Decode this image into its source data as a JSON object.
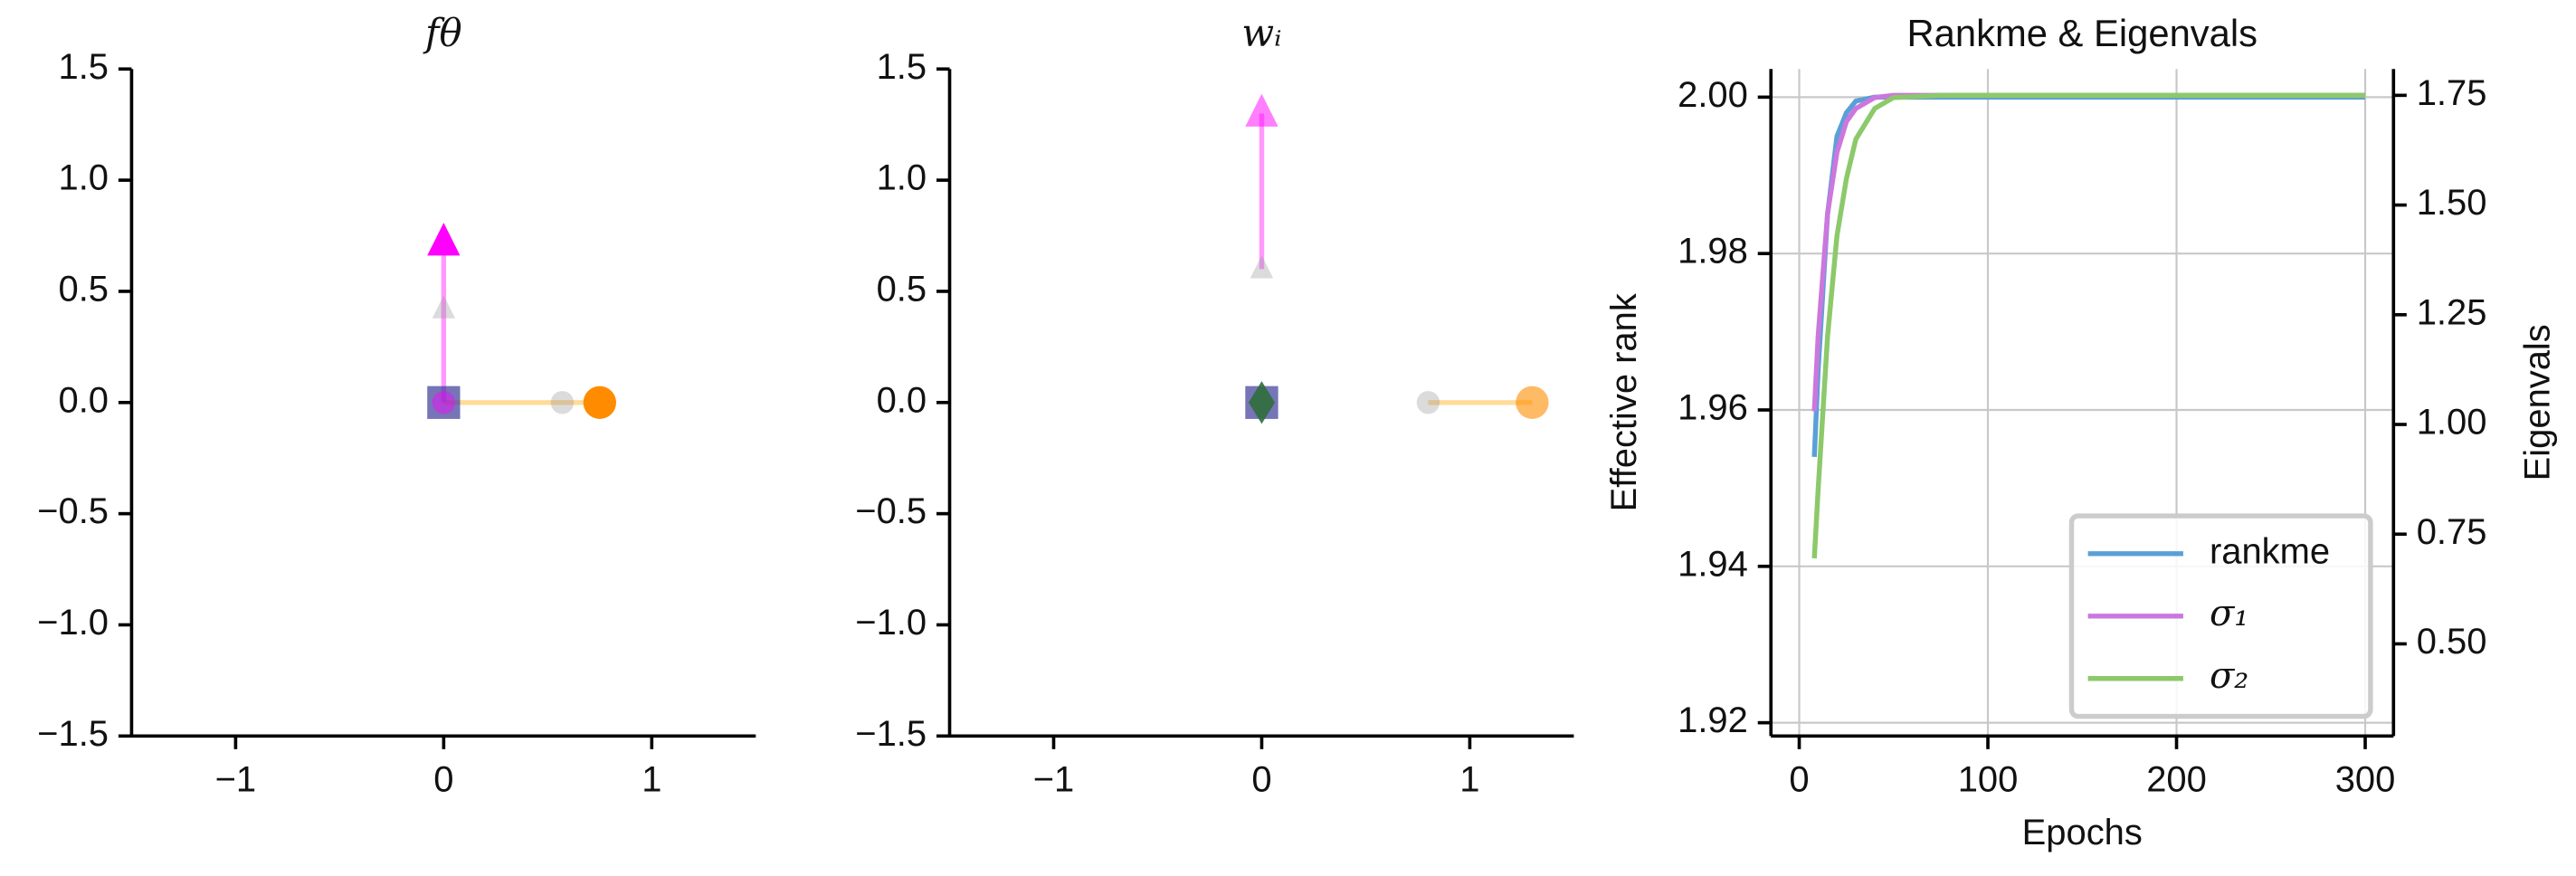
{
  "chart_data": [
    {
      "type": "scatter",
      "title": "fθ",
      "xlim": [
        -1.5,
        1.5
      ],
      "ylim": [
        -1.5,
        1.5
      ],
      "xticks": [
        {
          "value": -1,
          "label": "−1"
        },
        0,
        1
      ],
      "yticks": [
        {
          "value": -1.5,
          "label": "−1.5"
        },
        {
          "value": -1,
          "label": "−1.0"
        },
        {
          "value": -0.5,
          "label": "−0.5"
        },
        {
          "value": 0,
          "label": "0.0"
        },
        0.5,
        {
          "value": 1,
          "label": "1.0"
        },
        1.5
      ],
      "series": [
        {
          "marker": "line",
          "color": "#ff00ff",
          "alpha": 0.4,
          "x": [
            0,
            0
          ],
          "values": [
            0,
            0.72
          ]
        },
        {
          "marker": "line",
          "color": "#ffa500",
          "alpha": 0.4,
          "x": [
            0,
            0.75
          ],
          "values": [
            0,
            0
          ]
        },
        {
          "marker": "square",
          "color": "#3b3b99",
          "alpha": 0.7,
          "x": [
            0
          ],
          "values": [
            0
          ]
        },
        {
          "marker": "circle",
          "color": "#ff00ff",
          "alpha": 0.45,
          "x": [
            0
          ],
          "values": [
            0
          ]
        },
        {
          "marker": "triangle",
          "color": "#999999",
          "alpha": 0.35,
          "x": [
            0
          ],
          "values": [
            0.42
          ]
        },
        {
          "marker": "circle",
          "color": "#999999",
          "alpha": 0.35,
          "x": [
            0.57
          ],
          "values": [
            0
          ]
        },
        {
          "marker": "triangle",
          "color": "#ff00ff",
          "alpha": 1,
          "x": [
            0
          ],
          "values": [
            0.72
          ]
        },
        {
          "marker": "circle",
          "color": "#ff8c00",
          "alpha": 1,
          "x": [
            0.75
          ],
          "values": [
            0
          ]
        }
      ]
    },
    {
      "type": "scatter",
      "title": "wᵢ",
      "xlim": [
        -1.5,
        1.5
      ],
      "ylim": [
        -1.5,
        1.5
      ],
      "xticks": [
        {
          "value": -1,
          "label": "−1"
        },
        0,
        1
      ],
      "yticks": [
        {
          "value": -1.5,
          "label": "−1.5"
        },
        {
          "value": -1,
          "label": "−1.0"
        },
        {
          "value": -0.5,
          "label": "−0.5"
        },
        {
          "value": 0,
          "label": "0.0"
        },
        0.5,
        {
          "value": 1,
          "label": "1.0"
        },
        1.5
      ],
      "series": [
        {
          "marker": "line",
          "color": "#ff00ff",
          "alpha": 0.4,
          "x": [
            0,
            0
          ],
          "values": [
            0.6,
            1.3
          ]
        },
        {
          "marker": "line",
          "color": "#ffa500",
          "alpha": 0.4,
          "x": [
            0.8,
            1.3
          ],
          "values": [
            0,
            0
          ]
        },
        {
          "marker": "square",
          "color": "#3b3b99",
          "alpha": 0.7,
          "x": [
            0
          ],
          "values": [
            0
          ]
        },
        {
          "marker": "diamond",
          "color": "#2f6e3b",
          "alpha": 0.9,
          "x": [
            0
          ],
          "values": [
            0
          ]
        },
        {
          "marker": "triangle",
          "color": "#999999",
          "alpha": 0.35,
          "x": [
            0
          ],
          "values": [
            0.6
          ]
        },
        {
          "marker": "circle",
          "color": "#999999",
          "alpha": 0.35,
          "x": [
            0.8
          ],
          "values": [
            0
          ]
        },
        {
          "marker": "triangle",
          "color": "#ff00ff",
          "alpha": 0.5,
          "x": [
            0
          ],
          "values": [
            1.3
          ]
        },
        {
          "marker": "circle",
          "color": "#ff8c00",
          "alpha": 0.6,
          "x": [
            1.3
          ],
          "values": [
            0
          ]
        }
      ]
    },
    {
      "type": "line",
      "title": "Rankme & Eigenvals",
      "x_label": "Epochs",
      "y_label": "Effective rank",
      "y2_label": "Eigenvals",
      "grid": true,
      "legend": "lower right",
      "xlim": [
        -15,
        315
      ],
      "xticks": [
        0,
        100,
        200,
        300
      ],
      "ylim": [
        1.9183,
        2.0036
      ],
      "yticks": [
        {
          "value": 1.92,
          "label": "1.92"
        },
        {
          "value": 1.94,
          "label": "1.94"
        },
        {
          "value": 1.96,
          "label": "1.96"
        },
        {
          "value": 1.98,
          "label": "1.98"
        },
        {
          "value": 2,
          "label": "2.00"
        }
      ],
      "y2lim": [
        0.29,
        1.81
      ],
      "y2ticks": [
        {
          "value": 0.5,
          "label": "0.50"
        },
        0.75,
        {
          "value": 1,
          "label": "1.00"
        },
        1.25,
        {
          "value": 1.5,
          "label": "1.50"
        },
        1.75
      ],
      "x": [
        8,
        10,
        15,
        20,
        25,
        30,
        40,
        50,
        75,
        100,
        150,
        200,
        250,
        300
      ],
      "series": [
        {
          "name": "rankme",
          "color": "#5aa0d8",
          "values": [
            1.954,
            1.965,
            1.985,
            1.995,
            1.998,
            1.9995,
            2.0,
            2.0,
            2.0,
            2.0,
            2.0,
            2.0,
            2.0,
            2.0
          ]
        },
        {
          "name": "σ₁",
          "color": "#cc77dd",
          "axis": "y2",
          "values": [
            1.03,
            1.2,
            1.48,
            1.62,
            1.69,
            1.72,
            1.745,
            1.75,
            1.75,
            1.75,
            1.75,
            1.75,
            1.75,
            1.75
          ]
        },
        {
          "name": "σ₂",
          "color": "#8cc96a",
          "axis": "y2",
          "values": [
            0.695,
            0.85,
            1.2,
            1.43,
            1.56,
            1.65,
            1.72,
            1.745,
            1.75,
            1.75,
            1.75,
            1.75,
            1.75,
            1.75
          ]
        }
      ]
    }
  ]
}
